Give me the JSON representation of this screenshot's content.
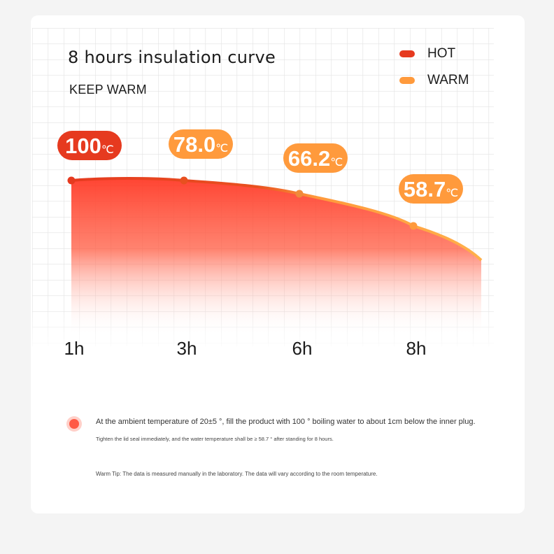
{
  "header": {
    "title": "8 hours insulation curve",
    "subtitle": "KEEP WARM"
  },
  "legend": [
    {
      "label": "HOT",
      "color": "#e63a1f"
    },
    {
      "label": "WARM",
      "color": "#ff9a3c"
    }
  ],
  "chart_data": {
    "type": "area",
    "x": [
      "1h",
      "3h",
      "6h",
      "8h"
    ],
    "series": [
      {
        "values": [
          100,
          78.0,
          66.2,
          58.7
        ]
      }
    ],
    "data_labels": [
      {
        "value": "100",
        "unit": "℃"
      },
      {
        "value": "78.0",
        "unit": "℃"
      },
      {
        "value": "66.2",
        "unit": "℃"
      },
      {
        "value": "58.7",
        "unit": "℃"
      }
    ],
    "grid": true,
    "colors": {
      "hot": "#e63a1f",
      "warm": "#ff9a3c",
      "grid": "#e3e3e3"
    }
  },
  "notes": {
    "main": "At the ambient temperature of 20±5 °, fill the product with 100 ° boiling water to about 1cm below the inner plug.",
    "sub": "Tighten the lid seal immediately, and the water temperature shall be ≥ 58.7 ° after standing for 8 hours.",
    "tip": "Warm Tip: The data is measured manually in the laboratory. The data will vary according to the room temperature."
  }
}
